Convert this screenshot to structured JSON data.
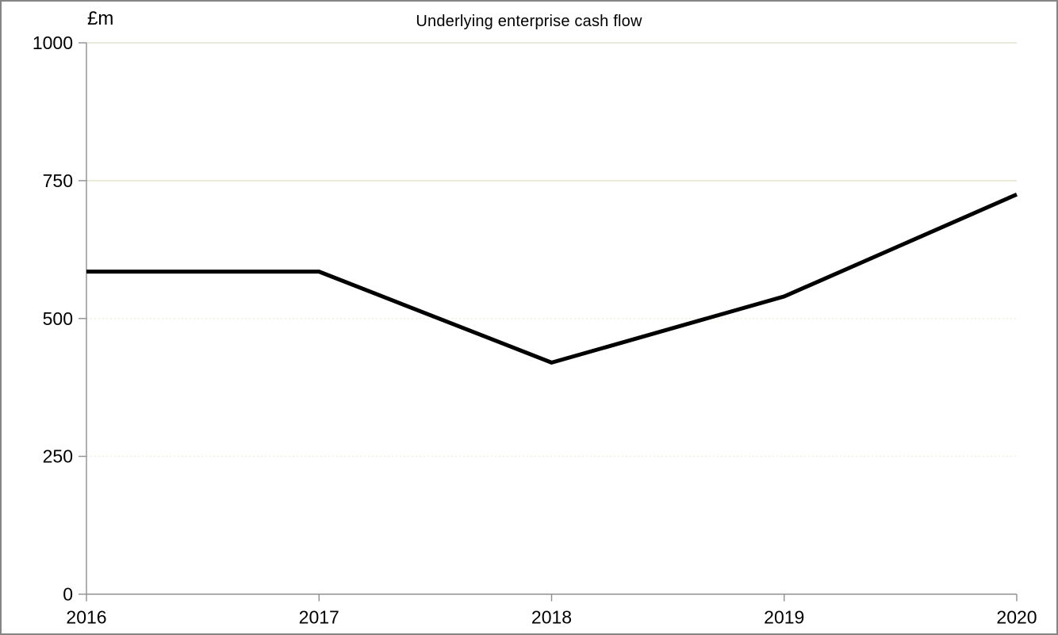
{
  "chart_data": {
    "type": "line",
    "title": "Underlying enterprise cash flow",
    "ylabel": "£m",
    "xlabel": "",
    "x": [
      2016,
      2017,
      2018,
      2019,
      2020
    ],
    "series": [
      {
        "name": "Underlying enterprise cash flow",
        "values": [
          585,
          585,
          420,
          540,
          725
        ]
      }
    ],
    "ylim": [
      0,
      1000
    ],
    "yticks": [
      0,
      250,
      500,
      750,
      1000
    ],
    "xticks": [
      2016,
      2017,
      2018,
      2019,
      2020
    ],
    "grid": "horizontal",
    "legend": false,
    "line_width": 5,
    "colors": {
      "line": "#000000",
      "axis": "#8e8e8e",
      "grid_solid": "#e4e4cd",
      "grid_faint": "#ededde",
      "text": "#000000",
      "background": "#ffffff",
      "border": "#858585"
    }
  }
}
